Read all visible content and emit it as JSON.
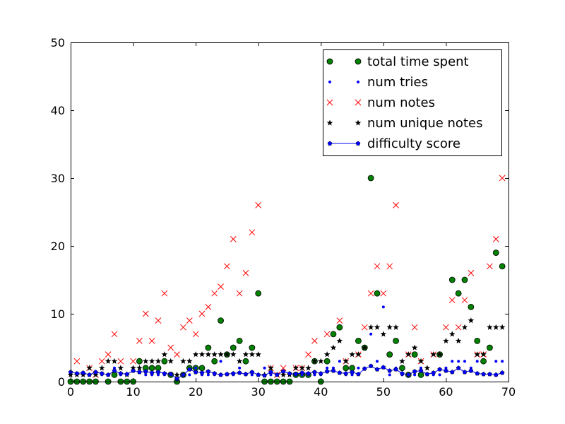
{
  "chart_data": {
    "type": "scatter",
    "title": "",
    "xlabel": "",
    "ylabel": "",
    "xlim": [
      0,
      70
    ],
    "ylim": [
      0,
      50
    ],
    "xticks": [
      0,
      10,
      20,
      30,
      40,
      50,
      60,
      70
    ],
    "yticks": [
      0,
      10,
      20,
      30,
      40,
      50
    ],
    "xtick_labels": [
      "0",
      "10",
      "20",
      "30",
      "40",
      "50",
      "60",
      "70"
    ],
    "ytick_labels": [
      "0",
      "10",
      "20",
      "30",
      "40",
      "50"
    ],
    "grid": false,
    "legend_position": "top-right",
    "series": [
      {
        "name": "total time spent",
        "marker": "circle",
        "color": "#008000",
        "points": [
          [
            0,
            0
          ],
          [
            1,
            0
          ],
          [
            2,
            0
          ],
          [
            3,
            0
          ],
          [
            4,
            0
          ],
          [
            6,
            0
          ],
          [
            7,
            1
          ],
          [
            8,
            0
          ],
          [
            9,
            0
          ],
          [
            10,
            0
          ],
          [
            11,
            3
          ],
          [
            12,
            2
          ],
          [
            13,
            2
          ],
          [
            14,
            2
          ],
          [
            15,
            3
          ],
          [
            16,
            1
          ],
          [
            17,
            0
          ],
          [
            18,
            1
          ],
          [
            19,
            2
          ],
          [
            20,
            2
          ],
          [
            21,
            2
          ],
          [
            22,
            5
          ],
          [
            23,
            3
          ],
          [
            24,
            9
          ],
          [
            25,
            4
          ],
          [
            26,
            5
          ],
          [
            27,
            6
          ],
          [
            28,
            3
          ],
          [
            29,
            5
          ],
          [
            30,
            13
          ],
          [
            31,
            0
          ],
          [
            32,
            0
          ],
          [
            33,
            0
          ],
          [
            34,
            0
          ],
          [
            35,
            0
          ],
          [
            36,
            1
          ],
          [
            37,
            1
          ],
          [
            38,
            1
          ],
          [
            39,
            3
          ],
          [
            40,
            0
          ],
          [
            41,
            3
          ],
          [
            42,
            7
          ],
          [
            43,
            8
          ],
          [
            44,
            2
          ],
          [
            45,
            2
          ],
          [
            46,
            6
          ],
          [
            47,
            5
          ],
          [
            48,
            30
          ],
          [
            49,
            13
          ],
          [
            51,
            4
          ],
          [
            52,
            6
          ],
          [
            53,
            2
          ],
          [
            54,
            1
          ],
          [
            55,
            4
          ],
          [
            56,
            1
          ],
          [
            59,
            4
          ],
          [
            61,
            15
          ],
          [
            62,
            13
          ],
          [
            63,
            15
          ],
          [
            64,
            11
          ],
          [
            65,
            6
          ],
          [
            66,
            3
          ],
          [
            67,
            5
          ],
          [
            68,
            19
          ],
          [
            69,
            17
          ]
        ]
      },
      {
        "name": "num tries",
        "marker": "dot",
        "color": "#0000ff",
        "points": [
          [
            0,
            1
          ],
          [
            1,
            1
          ],
          [
            2,
            1
          ],
          [
            3,
            1
          ],
          [
            4,
            1
          ],
          [
            5,
            1
          ],
          [
            6,
            1
          ],
          [
            7,
            2
          ],
          [
            8,
            1
          ],
          [
            9,
            1
          ],
          [
            10,
            2
          ],
          [
            11,
            2
          ],
          [
            12,
            1
          ],
          [
            13,
            1
          ],
          [
            14,
            1
          ],
          [
            15,
            1
          ],
          [
            16,
            1
          ],
          [
            17,
            1
          ],
          [
            18,
            1
          ],
          [
            19,
            1
          ],
          [
            20,
            2
          ],
          [
            21,
            1
          ],
          [
            22,
            1
          ],
          [
            23,
            1
          ],
          [
            24,
            3
          ],
          [
            25,
            1
          ],
          [
            26,
            1
          ],
          [
            27,
            2
          ],
          [
            28,
            1
          ],
          [
            29,
            1
          ],
          [
            30,
            1
          ],
          [
            31,
            2
          ],
          [
            32,
            1
          ],
          [
            33,
            1
          ],
          [
            34,
            1
          ],
          [
            35,
            1
          ],
          [
            36,
            1
          ],
          [
            37,
            1
          ],
          [
            38,
            1
          ],
          [
            39,
            1
          ],
          [
            40,
            1
          ],
          [
            41,
            2
          ],
          [
            42,
            2
          ],
          [
            43,
            3
          ],
          [
            44,
            1
          ],
          [
            45,
            1
          ],
          [
            46,
            2
          ],
          [
            47,
            2
          ],
          [
            48,
            7
          ],
          [
            49,
            3
          ],
          [
            50,
            11
          ],
          [
            51,
            1
          ],
          [
            52,
            2
          ],
          [
            53,
            1
          ],
          [
            54,
            1
          ],
          [
            55,
            1
          ],
          [
            56,
            2
          ],
          [
            57,
            1
          ],
          [
            58,
            1
          ],
          [
            59,
            1
          ],
          [
            60,
            2
          ],
          [
            61,
            3
          ],
          [
            62,
            3
          ],
          [
            63,
            3
          ],
          [
            64,
            2
          ],
          [
            65,
            3
          ],
          [
            66,
            1
          ],
          [
            67,
            1
          ],
          [
            68,
            3
          ],
          [
            69,
            3
          ]
        ]
      },
      {
        "name": "num notes",
        "marker": "x",
        "color": "#ff0000",
        "points": [
          [
            1,
            3
          ],
          [
            3,
            2
          ],
          [
            4,
            1
          ],
          [
            5,
            3
          ],
          [
            6,
            4
          ],
          [
            7,
            7
          ],
          [
            8,
            3
          ],
          [
            10,
            3
          ],
          [
            11,
            6
          ],
          [
            12,
            10
          ],
          [
            13,
            6
          ],
          [
            14,
            9
          ],
          [
            15,
            13
          ],
          [
            16,
            5
          ],
          [
            17,
            4
          ],
          [
            18,
            8
          ],
          [
            19,
            9
          ],
          [
            20,
            7
          ],
          [
            21,
            10
          ],
          [
            22,
            11
          ],
          [
            23,
            13
          ],
          [
            24,
            14
          ],
          [
            25,
            17
          ],
          [
            26,
            21
          ],
          [
            27,
            13
          ],
          [
            28,
            16
          ],
          [
            29,
            22
          ],
          [
            30,
            26
          ],
          [
            32,
            2
          ],
          [
            33,
            1
          ],
          [
            34,
            2
          ],
          [
            36,
            2
          ],
          [
            37,
            2
          ],
          [
            38,
            4
          ],
          [
            39,
            6
          ],
          [
            41,
            7
          ],
          [
            43,
            9
          ],
          [
            44,
            3
          ],
          [
            46,
            4
          ],
          [
            47,
            8
          ],
          [
            48,
            13
          ],
          [
            49,
            17
          ],
          [
            50,
            13
          ],
          [
            51,
            17
          ],
          [
            52,
            26
          ],
          [
            54,
            4
          ],
          [
            55,
            8
          ],
          [
            56,
            3
          ],
          [
            58,
            4
          ],
          [
            60,
            8
          ],
          [
            61,
            12
          ],
          [
            62,
            8
          ],
          [
            63,
            12
          ],
          [
            64,
            16
          ],
          [
            65,
            4
          ],
          [
            66,
            4
          ],
          [
            67,
            17
          ],
          [
            68,
            21
          ],
          [
            69,
            30
          ]
        ]
      },
      {
        "name": "num unique notes",
        "marker": "star",
        "color": "#000000",
        "points": [
          [
            0,
            1
          ],
          [
            1,
            1
          ],
          [
            2,
            1
          ],
          [
            3,
            2
          ],
          [
            4,
            1
          ],
          [
            5,
            2
          ],
          [
            6,
            3
          ],
          [
            7,
            3
          ],
          [
            8,
            2
          ],
          [
            9,
            1
          ],
          [
            10,
            2
          ],
          [
            11,
            2
          ],
          [
            12,
            3
          ],
          [
            13,
            3
          ],
          [
            14,
            3
          ],
          [
            15,
            4
          ],
          [
            16,
            3
          ],
          [
            17,
            1
          ],
          [
            18,
            3
          ],
          [
            19,
            3
          ],
          [
            20,
            4
          ],
          [
            21,
            4
          ],
          [
            22,
            4
          ],
          [
            23,
            4
          ],
          [
            24,
            4
          ],
          [
            25,
            4
          ],
          [
            26,
            4
          ],
          [
            27,
            3
          ],
          [
            28,
            4
          ],
          [
            29,
            4
          ],
          [
            30,
            4
          ],
          [
            31,
            1
          ],
          [
            32,
            2
          ],
          [
            33,
            1
          ],
          [
            34,
            1
          ],
          [
            35,
            1
          ],
          [
            36,
            2
          ],
          [
            37,
            2
          ],
          [
            38,
            2
          ],
          [
            39,
            3
          ],
          [
            40,
            3
          ],
          [
            41,
            4
          ],
          [
            42,
            5
          ],
          [
            43,
            6
          ],
          [
            44,
            3
          ],
          [
            45,
            4
          ],
          [
            46,
            4
          ],
          [
            47,
            5
          ],
          [
            48,
            8
          ],
          [
            49,
            8
          ],
          [
            50,
            7
          ],
          [
            51,
            8
          ],
          [
            52,
            8
          ],
          [
            53,
            3
          ],
          [
            54,
            4
          ],
          [
            55,
            5
          ],
          [
            56,
            3
          ],
          [
            57,
            2
          ],
          [
            58,
            4
          ],
          [
            59,
            4
          ],
          [
            60,
            6
          ],
          [
            61,
            7
          ],
          [
            62,
            6
          ],
          [
            63,
            8
          ],
          [
            64,
            9
          ],
          [
            65,
            4
          ],
          [
            66,
            4
          ],
          [
            67,
            8
          ],
          [
            68,
            8
          ],
          [
            69,
            8
          ]
        ]
      },
      {
        "name": "difficulty score",
        "marker": "pentagon-line",
        "color": "#0000ff",
        "points": [
          [
            0,
            1.4
          ],
          [
            1,
            1.2
          ],
          [
            2,
            1.3
          ],
          [
            3,
            1
          ],
          [
            4,
            1.4
          ],
          [
            5,
            1.2
          ],
          [
            6,
            1
          ],
          [
            7,
            1.6
          ],
          [
            8,
            1.2
          ],
          [
            9,
            1.1
          ],
          [
            10,
            1.6
          ],
          [
            11,
            1.4
          ],
          [
            12,
            1.5
          ],
          [
            13,
            1.3
          ],
          [
            14,
            1.4
          ],
          [
            15,
            1.2
          ],
          [
            16,
            1.1
          ],
          [
            17,
            0.4
          ],
          [
            18,
            1
          ],
          [
            19,
            1.8
          ],
          [
            20,
            1.4
          ],
          [
            21,
            1.3
          ],
          [
            22,
            1.5
          ],
          [
            23,
            1.2
          ],
          [
            24,
            1
          ],
          [
            25,
            1.1
          ],
          [
            26,
            1.2
          ],
          [
            27,
            1.3
          ],
          [
            28,
            1.1
          ],
          [
            29,
            1.4
          ],
          [
            30,
            1
          ],
          [
            31,
            0.9
          ],
          [
            32,
            1.4
          ],
          [
            33,
            1
          ],
          [
            34,
            1.5
          ],
          [
            35,
            1.2
          ],
          [
            36,
            1.1
          ],
          [
            37,
            1.3
          ],
          [
            38,
            1.2
          ],
          [
            39,
            1.4
          ],
          [
            40,
            1.2
          ],
          [
            41,
            1.5
          ],
          [
            42,
            1.6
          ],
          [
            43,
            1.3
          ],
          [
            44,
            1.2
          ],
          [
            45,
            1.4
          ],
          [
            46,
            1.1
          ],
          [
            47,
            1.9
          ],
          [
            48,
            2.3
          ],
          [
            49,
            1.8
          ],
          [
            50,
            2.1
          ],
          [
            51,
            1.6
          ],
          [
            52,
            1.8
          ],
          [
            53,
            1.2
          ],
          [
            54,
            1
          ],
          [
            55,
            1.5
          ],
          [
            56,
            1.6
          ],
          [
            57,
            1.1
          ],
          [
            58,
            1.3
          ],
          [
            59,
            1.8
          ],
          [
            60,
            1.6
          ],
          [
            61,
            1.4
          ],
          [
            62,
            2
          ],
          [
            63,
            1.4
          ],
          [
            64,
            1.6
          ],
          [
            65,
            1.2
          ],
          [
            66,
            1.1
          ],
          [
            67,
            1.1
          ],
          [
            68,
            1
          ],
          [
            69,
            1.3
          ]
        ]
      }
    ]
  }
}
